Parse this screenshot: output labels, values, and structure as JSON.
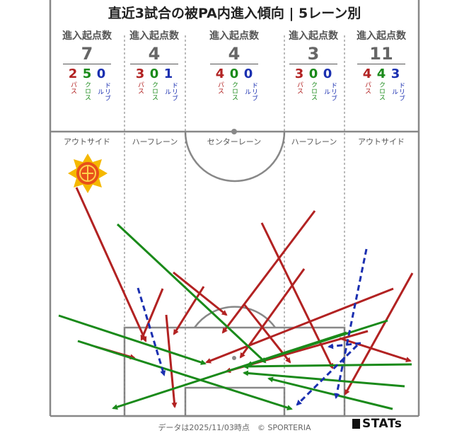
{
  "title": "直近3試合の被PA内進入傾向 | 5レーン別",
  "stat_label": "進入起点数",
  "type_labels": {
    "pass": "パス",
    "cross": "クロス",
    "dribble": "ドリブル"
  },
  "lanes": [
    {
      "name": "アウトサイド",
      "total": "7",
      "pass": "2",
      "cross": "5",
      "dribble": "0"
    },
    {
      "name": "ハーフレーン",
      "total": "4",
      "pass": "3",
      "cross": "0",
      "dribble": "1"
    },
    {
      "name": "センターレーン",
      "total": "4",
      "pass": "4",
      "cross": "0",
      "dribble": "0"
    },
    {
      "name": "ハーフレーン",
      "total": "3",
      "pass": "3",
      "cross": "0",
      "dribble": "0"
    },
    {
      "name": "アウトサイド",
      "total": "11",
      "pass": "4",
      "cross": "4",
      "dribble": "3"
    }
  ],
  "footer": "データは2025/11/03時点　© SPORTERIA",
  "brand": "STATs",
  "colors": {
    "pass": "#b22222",
    "cross": "#1a8a1a",
    "dribble": "#1a2fb0",
    "lines": "#888888"
  }
}
